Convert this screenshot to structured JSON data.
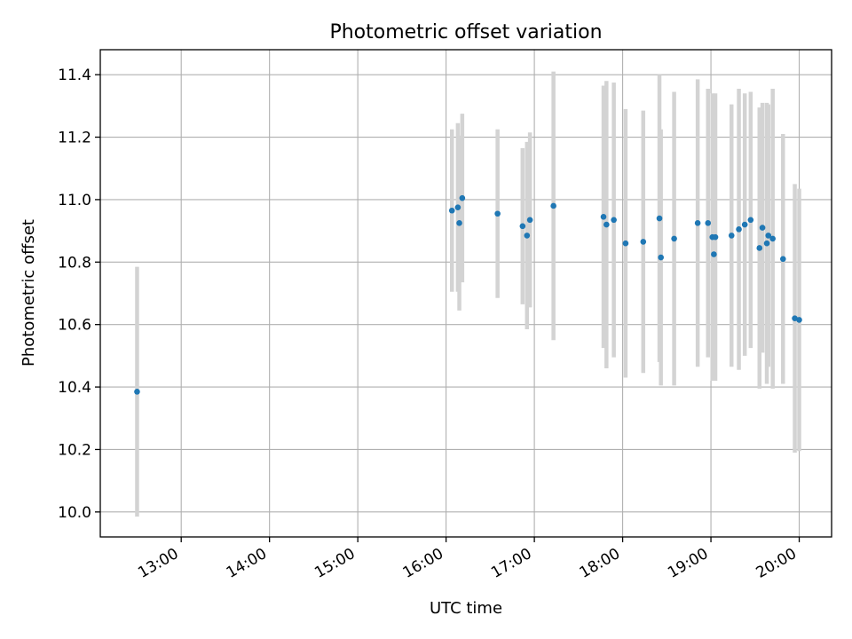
{
  "chart_data": {
    "type": "scatter",
    "title": "Photometric offset variation",
    "xlabel": "UTC time",
    "ylabel": "Photometric offset",
    "xlim": [
      "12:05",
      "20:22"
    ],
    "ylim": [
      9.92,
      11.48
    ],
    "xticks": [
      "13:00",
      "14:00",
      "15:00",
      "16:00",
      "17:00",
      "18:00",
      "19:00",
      "20:00"
    ],
    "yticks": [
      "10.0",
      "10.2",
      "10.4",
      "10.6",
      "10.8",
      "11.0",
      "11.2",
      "11.4"
    ],
    "grid": true,
    "colors": {
      "point": "#1f77b4",
      "errorbar": "#d3d3d3"
    },
    "points": [
      {
        "x": "12:30",
        "y": 10.385,
        "yerr": 0.4
      },
      {
        "x": "16:04",
        "y": 10.965,
        "yerr": 0.26
      },
      {
        "x": "16:08",
        "y": 10.975,
        "yerr": 0.27
      },
      {
        "x": "16:09",
        "y": 10.925,
        "yerr": 0.28
      },
      {
        "x": "16:11",
        "y": 11.005,
        "yerr": 0.27
      },
      {
        "x": "16:35",
        "y": 10.955,
        "yerr": 0.27
      },
      {
        "x": "16:52",
        "y": 10.915,
        "yerr": 0.25
      },
      {
        "x": "16:55",
        "y": 10.885,
        "yerr": 0.3
      },
      {
        "x": "16:57",
        "y": 10.935,
        "yerr": 0.28
      },
      {
        "x": "17:13",
        "y": 10.98,
        "yerr": 0.43
      },
      {
        "x": "17:47",
        "y": 10.945,
        "yerr": 0.42
      },
      {
        "x": "17:49",
        "y": 10.92,
        "yerr": 0.46
      },
      {
        "x": "17:54",
        "y": 10.935,
        "yerr": 0.44
      },
      {
        "x": "18:02",
        "y": 10.86,
        "yerr": 0.43
      },
      {
        "x": "18:14",
        "y": 10.865,
        "yerr": 0.42
      },
      {
        "x": "18:25",
        "y": 10.94,
        "yerr": 0.46
      },
      {
        "x": "18:26",
        "y": 10.815,
        "yerr": 0.41
      },
      {
        "x": "18:35",
        "y": 10.875,
        "yerr": 0.47
      },
      {
        "x": "18:51",
        "y": 10.925,
        "yerr": 0.46
      },
      {
        "x": "18:58",
        "y": 10.925,
        "yerr": 0.43
      },
      {
        "x": "19:01",
        "y": 10.88,
        "yerr": 0.46
      },
      {
        "x": "19:02",
        "y": 10.825,
        "yerr": 0.4
      },
      {
        "x": "19:03",
        "y": 10.88,
        "yerr": 0.46
      },
      {
        "x": "19:14",
        "y": 10.885,
        "yerr": 0.42
      },
      {
        "x": "19:19",
        "y": 10.905,
        "yerr": 0.45
      },
      {
        "x": "19:23",
        "y": 10.92,
        "yerr": 0.42
      },
      {
        "x": "19:27",
        "y": 10.935,
        "yerr": 0.41
      },
      {
        "x": "19:33",
        "y": 10.845,
        "yerr": 0.45
      },
      {
        "x": "19:35",
        "y": 10.91,
        "yerr": 0.4
      },
      {
        "x": "19:38",
        "y": 10.86,
        "yerr": 0.45
      },
      {
        "x": "19:39",
        "y": 10.885,
        "yerr": 0.42
      },
      {
        "x": "19:42",
        "y": 10.875,
        "yerr": 0.48
      },
      {
        "x": "19:49",
        "y": 10.81,
        "yerr": 0.4
      },
      {
        "x": "19:57",
        "y": 10.62,
        "yerr": 0.43
      },
      {
        "x": "20:00",
        "y": 10.615,
        "yerr": 0.42
      }
    ]
  }
}
